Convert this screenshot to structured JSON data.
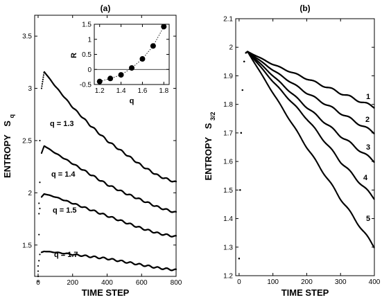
{
  "chart_data": [
    {
      "panel": "(a)",
      "type": "scatter",
      "title": "(a)",
      "xlabel": "TIME STEP",
      "ylabel": "ENTROPY",
      "ylabel_symbol": "S",
      "ylabel_sub": "q",
      "xlim": [
        -20,
        800
      ],
      "ylim": [
        1.2,
        3.7
      ],
      "xticks": [
        "0",
        "200",
        "400",
        "600",
        "800"
      ],
      "xtick_values": [
        0,
        200,
        400,
        600,
        800
      ],
      "yticks": [
        "1.5",
        "2",
        "2.5",
        "3",
        "3.5"
      ],
      "ytick_values": [
        1.5,
        2,
        2.5,
        3,
        3.5
      ],
      "series": [
        {
          "name": "q = 1.3",
          "label": "q = 1.3",
          "x": [
            0,
            5,
            10,
            20,
            35,
            100,
            200,
            300,
            400,
            500,
            600,
            700,
            800
          ],
          "y": [
            1.3,
            1.9,
            2.5,
            3.0,
            3.16,
            3.02,
            2.82,
            2.65,
            2.5,
            2.38,
            2.26,
            2.16,
            2.1
          ]
        },
        {
          "name": "q = 1.4",
          "label": "q = 1.4",
          "x": [
            0,
            5,
            10,
            20,
            35,
            100,
            200,
            300,
            400,
            500,
            600,
            700,
            800
          ],
          "y": [
            1.25,
            1.8,
            2.1,
            2.38,
            2.45,
            2.38,
            2.28,
            2.18,
            2.08,
            2.0,
            1.93,
            1.86,
            1.81
          ]
        },
        {
          "name": "q = 1.5",
          "label": "q = 1.5",
          "x": [
            0,
            5,
            10,
            20,
            35,
            100,
            200,
            300,
            400,
            500,
            600,
            700,
            800
          ],
          "y": [
            1.2,
            1.6,
            1.85,
            1.96,
            1.99,
            1.96,
            1.9,
            1.84,
            1.78,
            1.72,
            1.66,
            1.61,
            1.58
          ]
        },
        {
          "name": "q = 1.7",
          "label": "q = 1.7",
          "x": [
            0,
            5,
            10,
            20,
            35,
            100,
            200,
            300,
            400,
            500,
            600,
            700,
            800
          ],
          "y": [
            1.15,
            1.35,
            1.41,
            1.43,
            1.44,
            1.43,
            1.41,
            1.39,
            1.37,
            1.34,
            1.31,
            1.28,
            1.26
          ]
        }
      ],
      "inset": {
        "type": "scatter",
        "xlabel": "q",
        "ylabel": "R",
        "xlim": [
          1.15,
          1.85
        ],
        "ylim": [
          -0.5,
          1.5
        ],
        "xticks": [
          "1.2",
          "1.4",
          "1.6",
          "1.8"
        ],
        "xtick_values": [
          1.2,
          1.4,
          1.6,
          1.8
        ],
        "yticks": [
          "-0.5",
          "0",
          "0.5",
          "1",
          "1.5"
        ],
        "ytick_values": [
          -0.5,
          0,
          0.5,
          1,
          1.5
        ],
        "reference_line_y": 0,
        "x": [
          1.2,
          1.3,
          1.4,
          1.5,
          1.6,
          1.7,
          1.8
        ],
        "y": [
          -0.4,
          -0.3,
          -0.18,
          0.05,
          0.35,
          0.78,
          1.42
        ]
      }
    },
    {
      "panel": "(b)",
      "type": "scatter",
      "title": "(b)",
      "xlabel": "TIME STEP",
      "ylabel": "ENTROPY",
      "ylabel_symbol": "S",
      "ylabel_sub": "3/2",
      "xlim": [
        -10,
        400
      ],
      "ylim": [
        1.2,
        2.1
      ],
      "xticks": [
        "0",
        "100",
        "200",
        "300",
        "400"
      ],
      "xtick_values": [
        0,
        100,
        200,
        300,
        400
      ],
      "yticks": [
        "1.2",
        "1.3",
        "1.4",
        "1.5",
        "1.6",
        "1.7",
        "1.8",
        "1.9",
        "2",
        "2.1"
      ],
      "ytick_values": [
        1.2,
        1.3,
        1.4,
        1.5,
        1.6,
        1.7,
        1.8,
        1.9,
        2.0,
        2.1
      ],
      "series": [
        {
          "name": "1",
          "label": "1",
          "x": [
            0,
            3,
            6,
            10,
            15,
            20,
            25,
            100,
            200,
            300,
            400
          ],
          "y": [
            1.26,
            1.5,
            1.7,
            1.85,
            1.95,
            1.98,
            1.985,
            1.94,
            1.89,
            1.84,
            1.79
          ]
        },
        {
          "name": "2",
          "label": "2",
          "x": [
            0,
            3,
            6,
            10,
            15,
            20,
            25,
            100,
            200,
            300,
            400
          ],
          "y": [
            1.26,
            1.5,
            1.7,
            1.85,
            1.95,
            1.98,
            1.985,
            1.92,
            1.84,
            1.77,
            1.7
          ]
        },
        {
          "name": "3",
          "label": "3",
          "x": [
            0,
            3,
            6,
            10,
            15,
            20,
            25,
            100,
            200,
            300,
            400
          ],
          "y": [
            1.26,
            1.5,
            1.7,
            1.85,
            1.95,
            1.98,
            1.985,
            1.9,
            1.79,
            1.69,
            1.6
          ]
        },
        {
          "name": "4",
          "label": "4",
          "x": [
            0,
            3,
            6,
            10,
            15,
            20,
            25,
            100,
            200,
            300,
            400
          ],
          "y": [
            1.26,
            1.5,
            1.7,
            1.85,
            1.95,
            1.98,
            1.985,
            1.88,
            1.75,
            1.6,
            1.47
          ]
        },
        {
          "name": "5",
          "label": "5",
          "x": [
            0,
            3,
            6,
            10,
            15,
            20,
            25,
            100,
            200,
            300,
            400
          ],
          "y": [
            1.26,
            1.5,
            1.7,
            1.85,
            1.95,
            1.98,
            1.985,
            1.84,
            1.65,
            1.47,
            1.3
          ]
        }
      ]
    }
  ]
}
